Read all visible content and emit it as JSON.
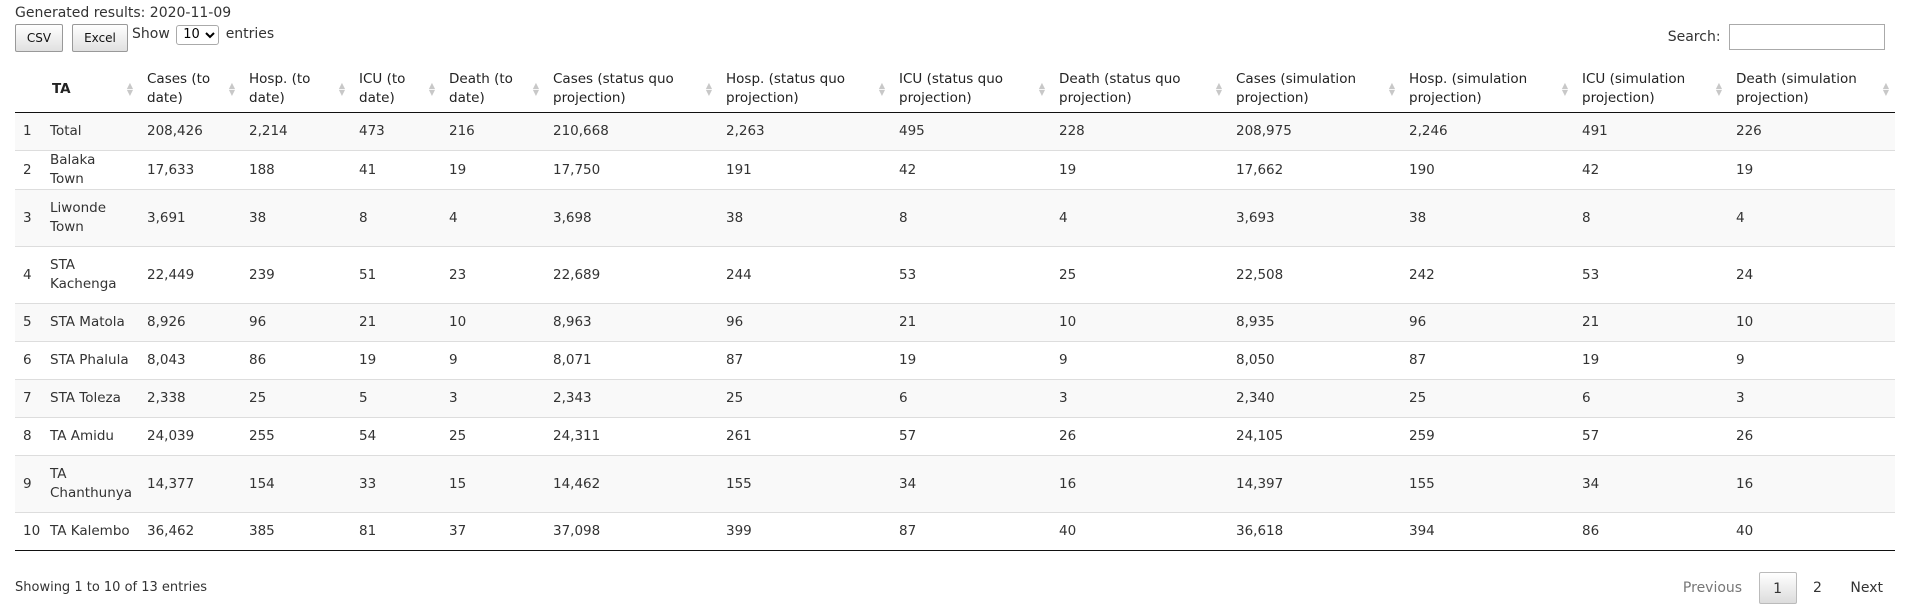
{
  "generated": "Generated results: 2020-11-09",
  "buttons": {
    "csv": "CSV",
    "excel": "Excel"
  },
  "length": {
    "show": "Show",
    "value": "10",
    "entries": "entries"
  },
  "search": {
    "label": "Search:",
    "value": ""
  },
  "table": {
    "headers": [
      "",
      "TA",
      "Cases (to date)",
      "Hosp. (to date)",
      "ICU (to date)",
      "Death (to date)",
      "Cases (status quo projection)",
      "Hosp. (status quo projection)",
      "ICU (status quo projection)",
      "Death (status quo projection)",
      "Cases (simulation projection)",
      "Hosp. (simulation projection)",
      "ICU (simulation projection)",
      "Death (simulation projection)"
    ],
    "rows": [
      [
        "1",
        "Total",
        "208,426",
        "2,214",
        "473",
        "216",
        "210,668",
        "2,263",
        "495",
        "228",
        "208,975",
        "2,246",
        "491",
        "226"
      ],
      [
        "2",
        "Balaka Town",
        "17,633",
        "188",
        "41",
        "19",
        "17,750",
        "191",
        "42",
        "19",
        "17,662",
        "190",
        "42",
        "19"
      ],
      [
        "3",
        "Liwonde Town",
        "3,691",
        "38",
        "8",
        "4",
        "3,698",
        "38",
        "8",
        "4",
        "3,693",
        "38",
        "8",
        "4"
      ],
      [
        "4",
        "STA Kachenga",
        "22,449",
        "239",
        "51",
        "23",
        "22,689",
        "244",
        "53",
        "25",
        "22,508",
        "242",
        "53",
        "24"
      ],
      [
        "5",
        "STA Matola",
        "8,926",
        "96",
        "21",
        "10",
        "8,963",
        "96",
        "21",
        "10",
        "8,935",
        "96",
        "21",
        "10"
      ],
      [
        "6",
        "STA Phalula",
        "8,043",
        "86",
        "19",
        "9",
        "8,071",
        "87",
        "19",
        "9",
        "8,050",
        "87",
        "19",
        "9"
      ],
      [
        "7",
        "STA Toleza",
        "2,338",
        "25",
        "5",
        "3",
        "2,343",
        "25",
        "6",
        "3",
        "2,340",
        "25",
        "6",
        "3"
      ],
      [
        "8",
        "TA Amidu",
        "24,039",
        "255",
        "54",
        "25",
        "24,311",
        "261",
        "57",
        "26",
        "24,105",
        "259",
        "57",
        "26"
      ],
      [
        "9",
        "TA Chanthunya",
        "14,377",
        "154",
        "33",
        "15",
        "14,462",
        "155",
        "34",
        "16",
        "14,397",
        "155",
        "34",
        "16"
      ],
      [
        "10",
        "TA Kalembo",
        "36,462",
        "385",
        "81",
        "37",
        "37,098",
        "399",
        "87",
        "40",
        "36,618",
        "394",
        "86",
        "40"
      ]
    ]
  },
  "info": "Showing 1 to 10 of 13 entries",
  "pagination": {
    "previous": "Previous",
    "pages": [
      "1",
      "2"
    ],
    "current": "1",
    "next": "Next"
  }
}
